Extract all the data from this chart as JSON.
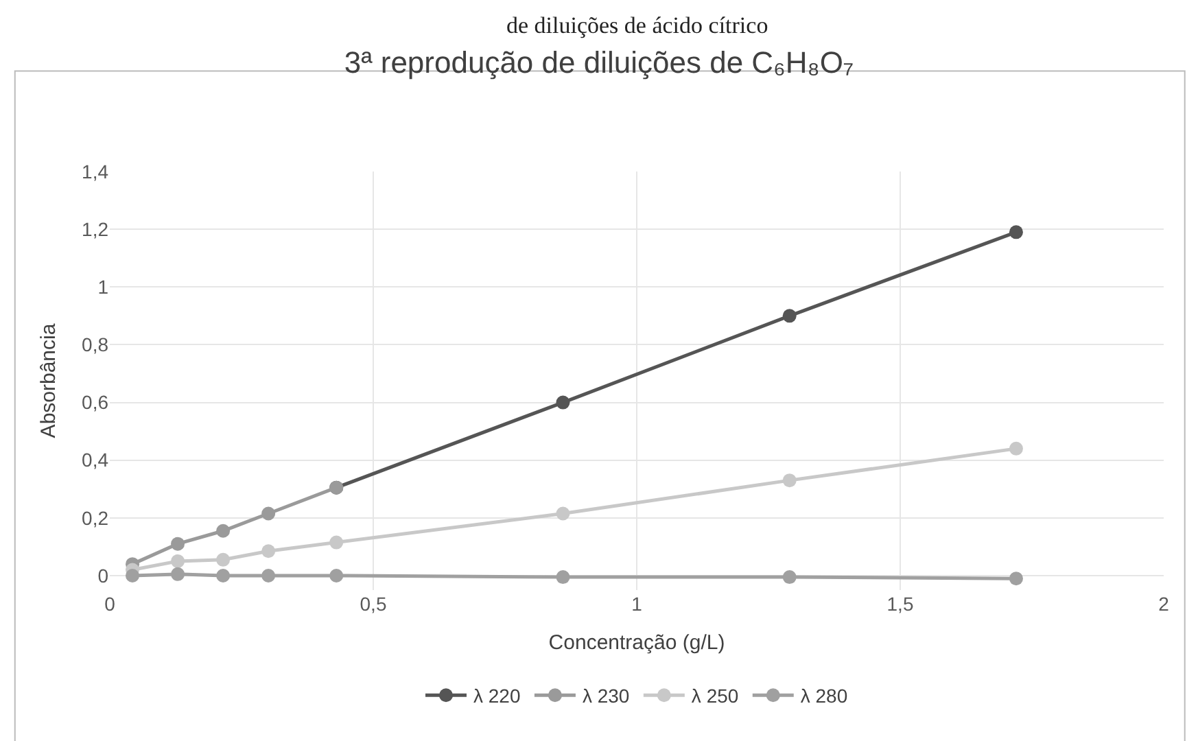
{
  "chart_data": {
    "type": "line",
    "title": "3ª reprodução de diluições de C₆H₈O₇",
    "xlabel": "Concentração (g/L)",
    "ylabel": "Absorbância",
    "annotations": [
      "de diluições de ácido cítrico"
    ],
    "x": [
      0.043,
      0.129,
      0.215,
      0.301,
      0.43,
      0.86,
      1.29,
      1.72
    ],
    "series": [
      {
        "name": "λ 220",
        "color": "#555555",
        "values": [
          null,
          null,
          null,
          null,
          0.305,
          0.6,
          0.9,
          1.19
        ]
      },
      {
        "name": "λ 230",
        "color": "#9a9a9a",
        "values": [
          0.04,
          0.11,
          0.155,
          0.215,
          0.305,
          null,
          null,
          null
        ]
      },
      {
        "name": "λ 250",
        "color": "#c8c8c8",
        "values": [
          0.02,
          0.05,
          0.055,
          0.085,
          0.115,
          0.215,
          0.33,
          0.44
        ]
      },
      {
        "name": "λ 280",
        "color": "#a0a0a0",
        "values": [
          0.0,
          0.005,
          0.0,
          0.0,
          0.0,
          -0.005,
          -0.005,
          -0.01
        ]
      }
    ],
    "xlim": [
      0,
      2
    ],
    "xticks": [
      0,
      {
        "value": 0.5,
        "label": "0,5"
      },
      1,
      {
        "value": 1.5,
        "label": "1,5"
      },
      2
    ],
    "ylim": [
      -0.05,
      1.4
    ],
    "yticks": [
      0,
      {
        "value": 0.2,
        "label": "0,2"
      },
      {
        "value": 0.4,
        "label": "0,4"
      },
      {
        "value": 0.6,
        "label": "0,6"
      },
      {
        "value": 0.8,
        "label": "0,8"
      },
      1,
      {
        "value": 1.2,
        "label": "1,2"
      },
      {
        "value": 1.4,
        "label": "1,4"
      }
    ],
    "grid": true,
    "legend": "bottom",
    "marker": "circle",
    "line_style": "solid"
  }
}
